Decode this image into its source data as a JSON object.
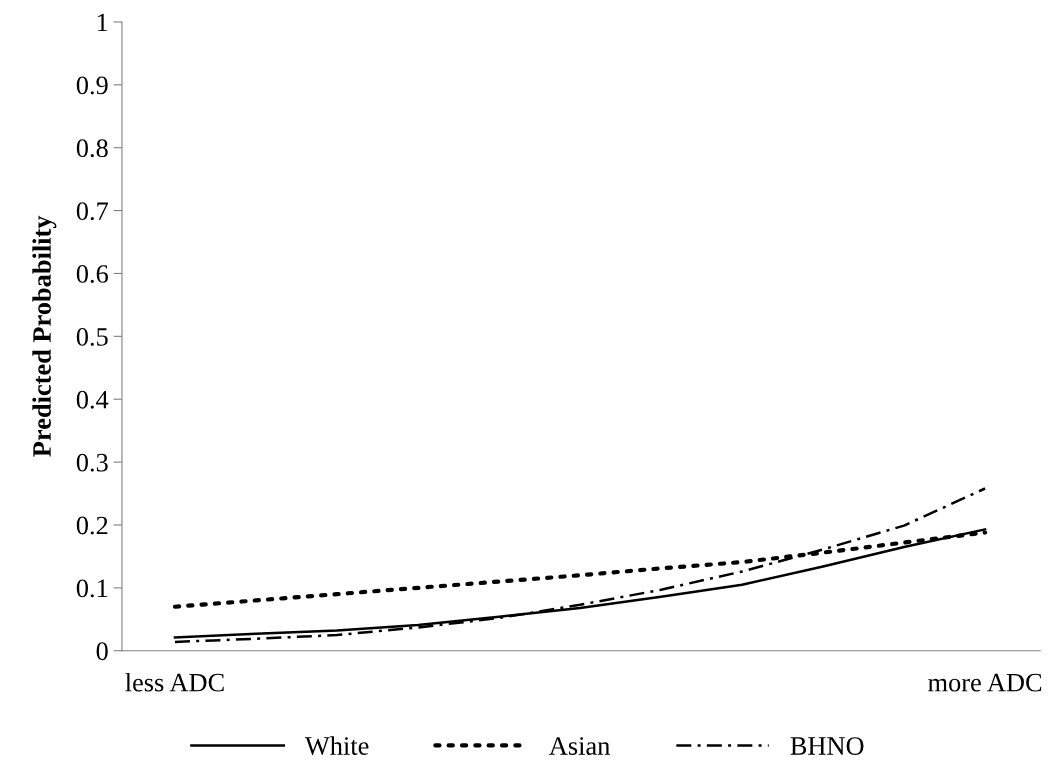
{
  "chart_data": {
    "type": "line",
    "ylabel": "Predicted Probability",
    "categories": [
      "less ADC",
      null,
      null,
      null,
      null,
      null,
      null,
      null,
      null,
      null,
      "more ADC"
    ],
    "series": [
      {
        "name": "White",
        "color": "#000000",
        "line_style": "solid",
        "values": [
          0.021,
          0.027,
          0.032,
          0.041,
          0.054,
          0.068,
          0.086,
          0.105,
          0.134,
          0.165,
          0.193
        ]
      },
      {
        "name": "Asian",
        "color": "#000000",
        "line_style": "dotted",
        "values": [
          0.07,
          0.08,
          0.09,
          0.1,
          0.11,
          0.12,
          0.131,
          0.141,
          0.156,
          0.172,
          0.188
        ]
      },
      {
        "name": "BHNO",
        "color": "#000000",
        "line_style": "dashdot",
        "values": [
          0.014,
          0.019,
          0.025,
          0.037,
          0.052,
          0.073,
          0.097,
          0.126,
          0.161,
          0.199,
          0.258
        ]
      }
    ],
    "ylim": [
      0,
      1
    ],
    "yticks": [
      0,
      0.1,
      0.2,
      0.3,
      0.4,
      0.5,
      0.6,
      0.7,
      0.8,
      0.9,
      1
    ],
    "grid": false,
    "legend": "bottom",
    "marker": "none"
  }
}
